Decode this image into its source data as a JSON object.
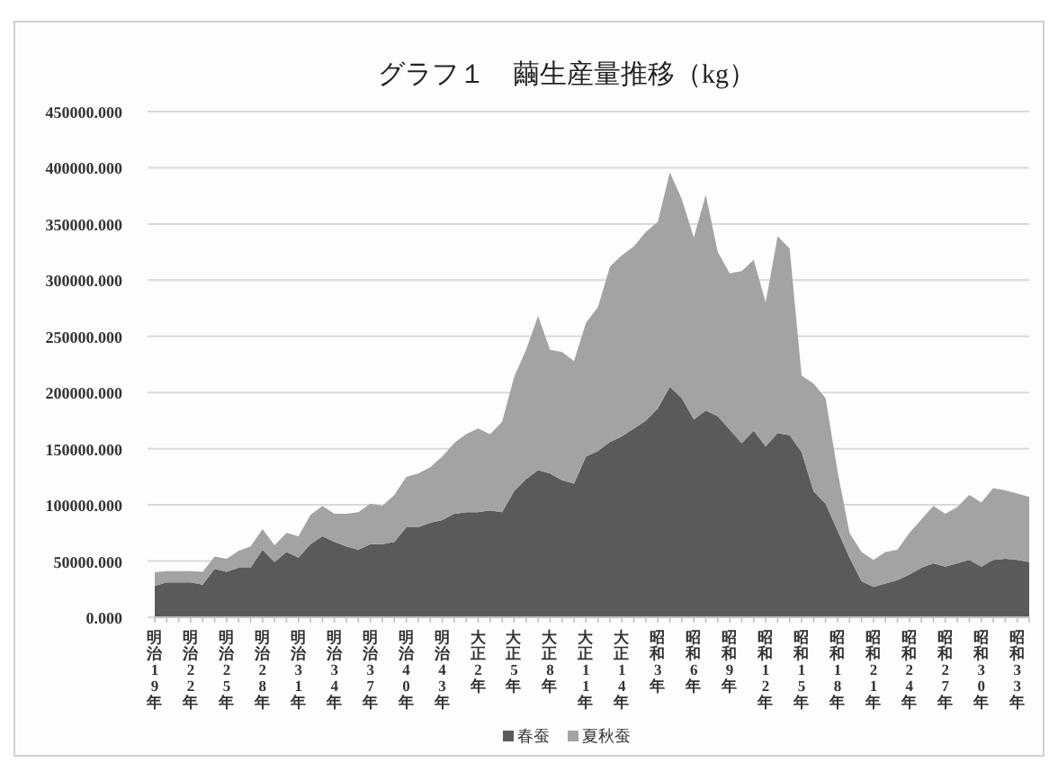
{
  "chart_data": {
    "type": "area",
    "title": "グラフ１　繭生産量推移（kg）",
    "stacked": true,
    "grid": "y",
    "legend": "bottom",
    "categories": [
      "明治19年",
      null,
      null,
      "明治22年",
      null,
      null,
      "明治25年",
      null,
      null,
      "明治28年",
      null,
      null,
      "明治31年",
      null,
      null,
      "明治34年",
      null,
      null,
      "明治37年",
      null,
      null,
      "明治40年",
      null,
      null,
      "明治43年",
      null,
      null,
      "大正2年",
      null,
      null,
      "大正5年",
      null,
      null,
      "大正8年",
      null,
      null,
      "大正11年",
      null,
      null,
      "大正14年",
      null,
      null,
      "昭和3年",
      null,
      null,
      "昭和6年",
      null,
      null,
      "昭和9年",
      null,
      null,
      "昭和12年",
      null,
      null,
      "昭和15年",
      null,
      null,
      "昭和18年",
      null,
      null,
      "昭和21年",
      null,
      null,
      "昭和24年",
      null,
      null,
      "昭和27年",
      null,
      null,
      "昭和30年",
      null,
      null,
      "昭和33年",
      null
    ],
    "ylim": [
      0,
      450000
    ],
    "yticks": [
      {
        "value": 0,
        "label": "0.000"
      },
      {
        "value": 50000,
        "label": "50000.000"
      },
      {
        "value": 100000,
        "label": "100000.000"
      },
      {
        "value": 150000,
        "label": "150000.000"
      },
      {
        "value": 200000,
        "label": "200000.000"
      },
      {
        "value": 250000,
        "label": "250000.000"
      },
      {
        "value": 300000,
        "label": "300000.000"
      },
      {
        "value": 350000,
        "label": "350000.000"
      },
      {
        "value": 400000,
        "label": "400000.000"
      },
      {
        "value": 450000,
        "label": "450000.000"
      }
    ],
    "series": [
      {
        "name": "春蚕",
        "color": "#5a5a5a",
        "values": [
          28000,
          31000,
          31000,
          31000,
          29000,
          43000,
          40500,
          44000,
          44000,
          60000,
          49000,
          58000,
          53000,
          65000,
          72000,
          67000,
          63000,
          60000,
          65000,
          65000,
          67000,
          80000,
          80000,
          84000,
          86500,
          92000,
          93500,
          93500,
          95000,
          93500,
          112000,
          123000,
          131000,
          128000,
          122000,
          119000,
          143000,
          148000,
          156000,
          161000,
          168000,
          175000,
          186000,
          205000,
          195000,
          176000,
          184000,
          179000,
          167000,
          155000,
          166000,
          152000,
          164000,
          162000,
          147000,
          112000,
          101000,
          77000,
          53000,
          32000,
          27000,
          30000,
          33000,
          38000,
          44000,
          48000,
          45000,
          48000,
          51000,
          45000,
          51000,
          52000,
          51000,
          49000
        ]
      },
      {
        "name": "夏秋蚕",
        "color": "#a3a3a3",
        "values": [
          12000,
          10000,
          10000,
          10000,
          11500,
          11000,
          11500,
          15000,
          19000,
          18500,
          15000,
          17000,
          19000,
          26000,
          27000,
          25000,
          29000,
          33500,
          36000,
          34000,
          42000,
          45000,
          48000,
          49500,
          56500,
          63000,
          69500,
          74500,
          68000,
          80500,
          102000,
          115000,
          137000,
          110000,
          114000,
          109000,
          119000,
          128000,
          156000,
          161000,
          162000,
          168000,
          166000,
          191000,
          177000,
          162000,
          192000,
          146000,
          139000,
          153000,
          152000,
          128000,
          175000,
          166000,
          68000,
          96000,
          94000,
          53000,
          22000,
          26000,
          24000,
          28000,
          27000,
          37000,
          43000,
          51000,
          47000,
          50000,
          58000,
          57000,
          64000,
          61000,
          59000,
          58000
        ]
      }
    ]
  }
}
